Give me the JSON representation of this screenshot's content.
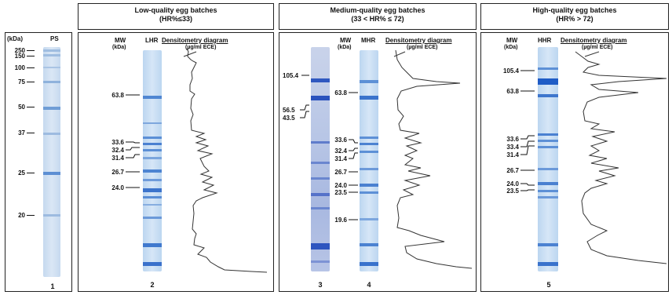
{
  "headers": [
    {
      "line1": "Low-quality egg batches",
      "line2": "(HR%≤33)"
    },
    {
      "line1": "Medium-quality egg batches",
      "line2": "(33 < HR% ≤ 72)"
    },
    {
      "line1": "High-quality egg batches",
      "line2": "(HR% > 72)"
    }
  ],
  "ps_panel": {
    "unit": "(kDa)",
    "lane_label": "PS",
    "markers": [
      "250",
      "150",
      "100",
      "75",
      "50",
      "37",
      "25",
      "20"
    ],
    "lane_number": "1"
  },
  "panel_low": {
    "mw_label": "MW",
    "mw_unit": "(kDa)",
    "lane_label": "LHR",
    "densitometry_title": "Densitometry diagram",
    "densitometry_unit": "(µg/ml ECE)",
    "mw_values": [
      "63.8",
      "33.6",
      "32.4",
      "31.4",
      "26.7",
      "24.0"
    ],
    "lane_number": "2"
  },
  "panel_medium": {
    "mw_label": "MW",
    "mw_unit": "(kDa)",
    "lane_label": "MHR",
    "densitometry_title": "Densitometry diagram",
    "densitometry_unit": "(µg/ml ECE)",
    "left_values": [
      "105.4",
      "56.5",
      "43.5"
    ],
    "mw_values": [
      "63.8",
      "33.6",
      "32.4",
      "31.4",
      "26.7",
      "24.0",
      "23.5",
      "19.6"
    ],
    "lane_numbers": [
      "3",
      "4"
    ]
  },
  "panel_high": {
    "mw_label": "MW",
    "mw_unit": "(kDa)",
    "lane_label": "HHR",
    "densitometry_title": "Densitometry diagram",
    "densitometry_unit": "(µg/ml ECE)",
    "mw_values": [
      "105.4",
      "63.8",
      "33.6",
      "33.4",
      "31.4",
      "26.7",
      "24.0",
      "23.5"
    ],
    "lane_number": "5"
  }
}
